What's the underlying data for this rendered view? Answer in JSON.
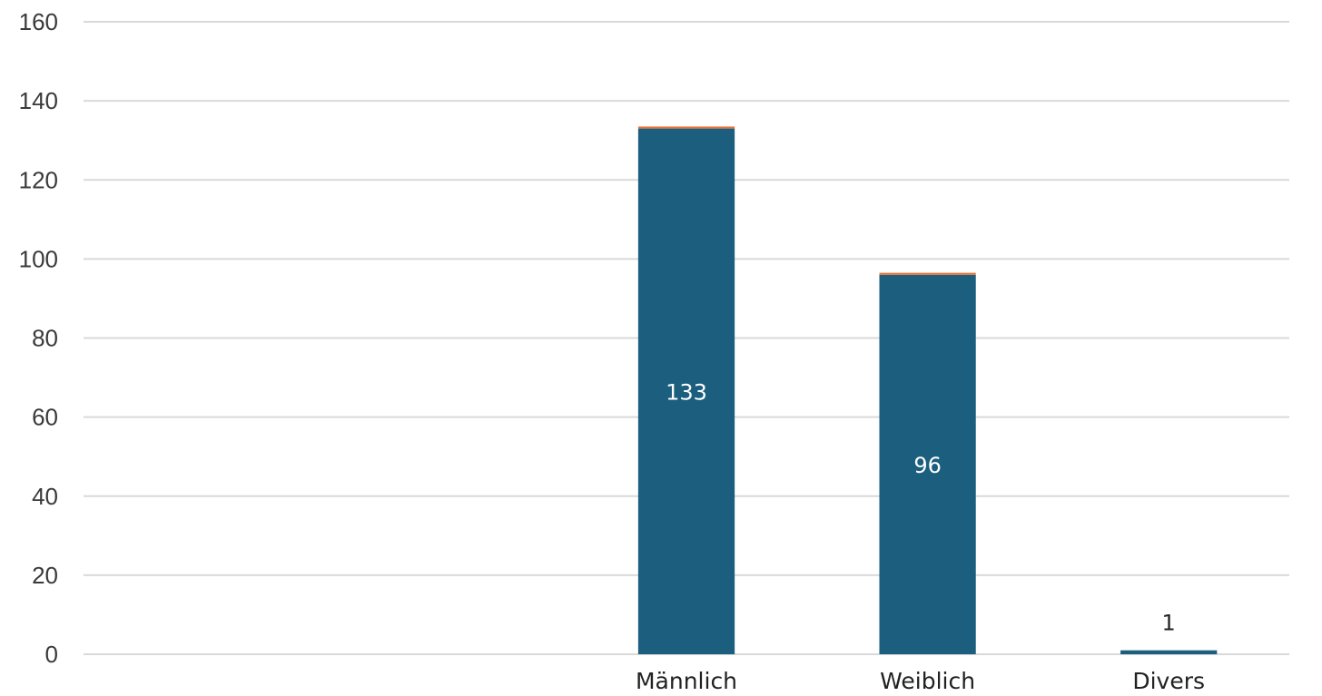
{
  "chart_data": {
    "type": "bar",
    "categories": [
      "",
      "",
      "Männlich",
      "Weiblich",
      "Divers"
    ],
    "series": [
      {
        "values": [
          0,
          0,
          133,
          96,
          1
        ],
        "color": "#1b5e7d",
        "data_labels": [
          "",
          "",
          "133",
          "96",
          "1"
        ]
      },
      {
        "values": [
          0,
          0,
          0.5,
          0.5,
          0
        ],
        "color": "#e8733a"
      }
    ],
    "stacked": true,
    "ylim": [
      0,
      160
    ],
    "yticks": [
      "0",
      "20",
      "40",
      "60",
      "80",
      "100",
      "120",
      "140",
      "160"
    ],
    "grid": true,
    "gridline_color": "#d9d9d9",
    "background": "#ffffff",
    "data_label_colors": {
      "inside": "#ffffff",
      "outside": "#222222"
    },
    "title": "",
    "xlabel": "",
    "ylabel": ""
  }
}
